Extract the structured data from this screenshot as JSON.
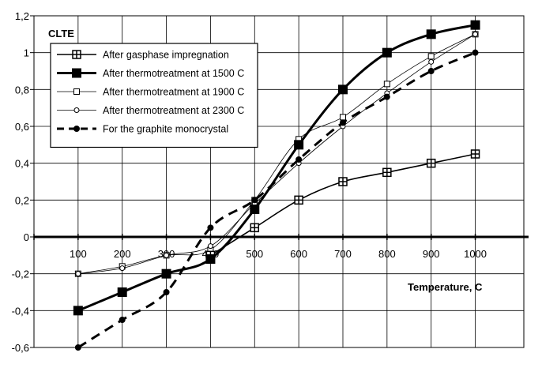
{
  "chart_data": {
    "type": "line",
    "ylabel": "CLTE",
    "xlabel": "Temperature, C",
    "xlim": [
      0,
      1110
    ],
    "ylim": [
      -0.6,
      1.2
    ],
    "x_ticks": [
      "100",
      "200",
      "300",
      "400",
      "500",
      "600",
      "700",
      "800",
      "900",
      "1000"
    ],
    "y_ticks": [
      "-0,6",
      "-0,4",
      "-0,2",
      "0",
      "0,2",
      "0,4",
      "0,6",
      "0,8",
      "1",
      "1,2"
    ],
    "grid": true,
    "legend_position": "top-left",
    "series": [
      {
        "name": "After gasphase impregnation",
        "marker": "plus-square",
        "line": "solid",
        "x": [
          400,
          500,
          600,
          700,
          800,
          900,
          1000
        ],
        "y": [
          -0.1,
          0.05,
          0.2,
          0.3,
          0.35,
          0.4,
          0.45
        ]
      },
      {
        "name": "After thermotreatment at 1500 C",
        "marker": "filled-square",
        "line": "thick-solid",
        "x": [
          100,
          200,
          300,
          400,
          500,
          600,
          700,
          800,
          900,
          1000
        ],
        "y": [
          -0.4,
          -0.3,
          -0.2,
          -0.12,
          0.15,
          0.5,
          0.8,
          1.0,
          1.1,
          1.15
        ]
      },
      {
        "name": "After thermotreatment at 1900 C",
        "marker": "open-square",
        "line": "thin-solid",
        "x": [
          100,
          200,
          300,
          400,
          500,
          600,
          700,
          800,
          900,
          1000
        ],
        "y": [
          -0.2,
          -0.16,
          -0.1,
          -0.07,
          0.2,
          0.53,
          0.65,
          0.83,
          0.98,
          1.1
        ]
      },
      {
        "name": "After thermotreatment at 2300 C",
        "marker": "open-circle",
        "line": "thin-solid",
        "x": [
          100,
          200,
          300,
          400,
          500,
          600,
          700,
          800,
          900,
          1000
        ],
        "y": [
          -0.2,
          -0.17,
          -0.1,
          -0.05,
          0.18,
          0.4,
          0.6,
          0.78,
          0.95,
          1.1
        ]
      },
      {
        "name": "For the graphite monocrystal",
        "marker": "filled-dot",
        "line": "thick-dashed",
        "x": [
          100,
          200,
          300,
          400,
          500,
          600,
          700,
          800,
          900,
          1000
        ],
        "y": [
          -0.6,
          -0.45,
          -0.3,
          0.05,
          0.2,
          0.42,
          0.62,
          0.76,
          0.9,
          1.0
        ]
      }
    ]
  }
}
